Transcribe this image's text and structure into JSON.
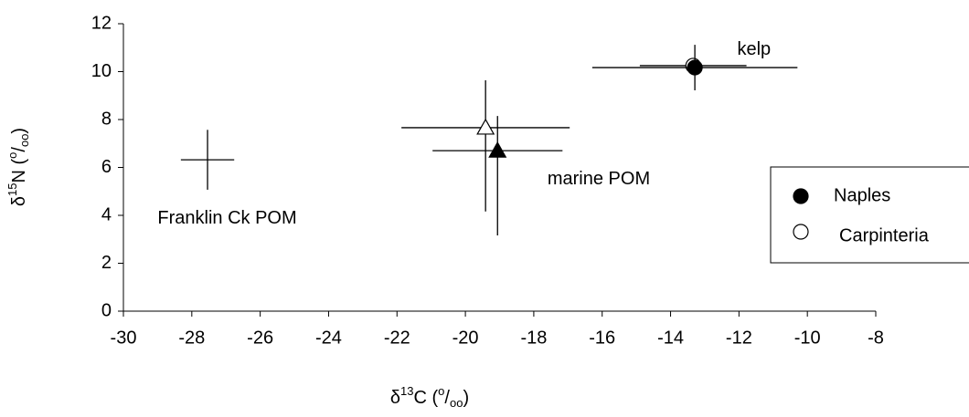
{
  "chart_data": {
    "type": "scatter",
    "x_label": [
      "δ",
      "13",
      "C (",
      "o",
      "/",
      "oo",
      ")"
    ],
    "y_label": [
      "δ",
      "15",
      "N (",
      "o",
      "/",
      "oo",
      ")"
    ],
    "xlim": [
      -30,
      -8
    ],
    "xticks": [
      -30,
      -28,
      -26,
      -24,
      -22,
      -20,
      -18,
      -16,
      -14,
      -12,
      -10,
      -8
    ],
    "ylim": [
      0,
      12
    ],
    "yticks": [
      0,
      2,
      4,
      6,
      8,
      10,
      12
    ],
    "series": [
      {
        "name": "Naples",
        "color": "#000000",
        "markers": [
          "triangle",
          "circle"
        ],
        "x": [
          -19.06,
          -13.29
        ],
        "y": [
          6.7,
          10.17
        ],
        "xerr": [
          1.9,
          3.0
        ],
        "yerr_minus": [
          3.54,
          0.95
        ],
        "yerr_plus": [
          1.45,
          0.95
        ]
      },
      {
        "name": "Carpinteria",
        "color": "#ffffff",
        "markers": [
          "triangle",
          "circle"
        ],
        "x": [
          -19.41,
          -13.34
        ],
        "y": [
          7.66,
          10.25
        ],
        "xerr": [
          2.46,
          1.56
        ],
        "yerr_minus": [
          3.5,
          0.3
        ],
        "yerr_plus": [
          1.98,
          0.3
        ]
      }
    ],
    "other_points": {
      "x": [
        -27.54
      ],
      "y": [
        6.32
      ],
      "xerr": [
        0.78
      ],
      "yerr_minus": [
        1.25
      ],
      "yerr_plus": [
        1.25
      ]
    },
    "annotations": [
      {
        "text": "kelp",
        "x": -12.05,
        "y": 10.9
      },
      {
        "text": "marine POM",
        "x": -17.6,
        "y": 5.5
      },
      {
        "text": "Franklin Ck POM",
        "x": -29.0,
        "y": 3.85
      }
    ],
    "legend": "right"
  }
}
